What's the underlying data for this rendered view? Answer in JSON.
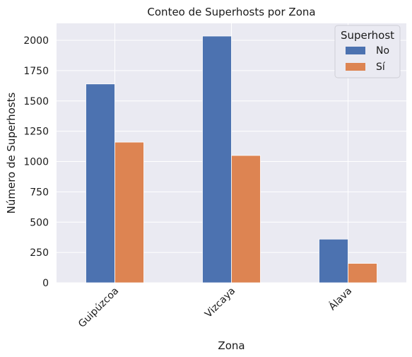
{
  "chart_data": {
    "type": "bar",
    "title": "Conteo de Superhosts por Zona",
    "xlabel": "Zona",
    "ylabel": "Número de Superhosts",
    "categories": [
      "Guipúzcoa",
      "Vizcaya",
      "Álava"
    ],
    "series": [
      {
        "name": "No",
        "values": [
          1640,
          2035,
          360
        ],
        "color": "#4c72b0"
      },
      {
        "name": "Sí",
        "values": [
          1160,
          1050,
          160
        ],
        "color": "#dd8452"
      }
    ],
    "ylim": [
      0,
      2140
    ],
    "yticks": [
      0,
      250,
      500,
      750,
      1000,
      1250,
      1500,
      1750,
      2000
    ],
    "grid": true,
    "legend": {
      "title": "Superhost",
      "position": "top-right"
    },
    "background": "#eaeaf2",
    "grid_color": "#ffffff"
  }
}
